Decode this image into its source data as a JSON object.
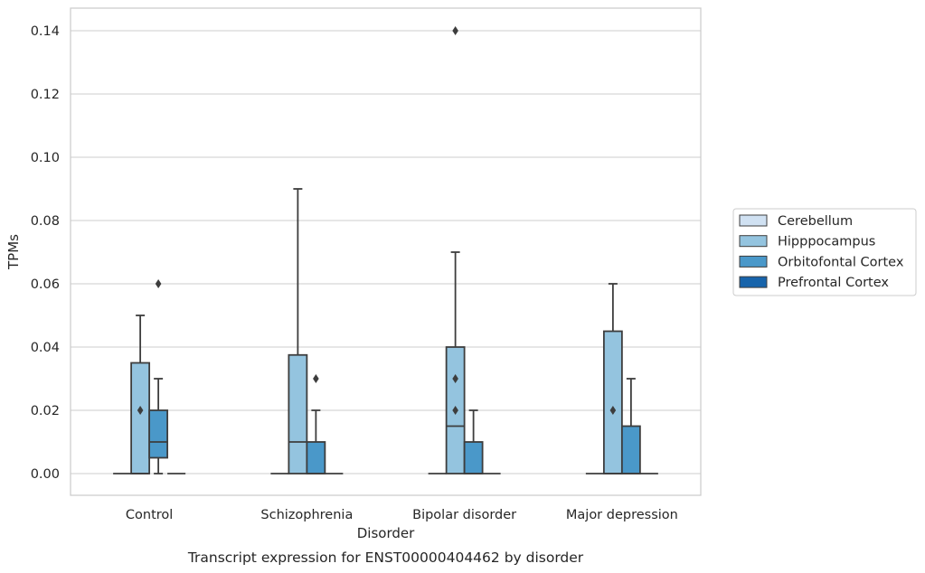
{
  "chart_data": {
    "type": "boxplot",
    "title": "",
    "xlabel": "Disorder",
    "ylabel": "TPMs",
    "caption": "Transcript expression for ENST00000404462 by disorder",
    "categories": [
      "Control",
      "Schizophrenia",
      "Bipolar disorder",
      "Major depression"
    ],
    "ylim": [
      -0.007,
      0.147
    ],
    "yticks": [
      0.0,
      0.02,
      0.04,
      0.06,
      0.08,
      0.1,
      0.12,
      0.14
    ],
    "ytick_labels": [
      "0.00",
      "0.02",
      "0.04",
      "0.06",
      "0.08",
      "0.10",
      "0.12",
      "0.14"
    ],
    "grid": true,
    "legend_position": "right",
    "series": [
      {
        "name": "Cerebellum",
        "color": "#d0e1f2",
        "boxes": [
          {
            "q1": 0,
            "median": 0,
            "q3": 0,
            "whisker_low": 0,
            "whisker_high": 0,
            "outliers": []
          },
          {
            "q1": 0,
            "median": 0,
            "q3": 0,
            "whisker_low": 0,
            "whisker_high": 0,
            "outliers": []
          },
          {
            "q1": 0,
            "median": 0,
            "q3": 0,
            "whisker_low": 0,
            "whisker_high": 0,
            "outliers": []
          },
          {
            "q1": 0,
            "median": 0,
            "q3": 0,
            "whisker_low": 0,
            "whisker_high": 0,
            "outliers": []
          }
        ]
      },
      {
        "name": "Hipppocampus",
        "color": "#94c4df",
        "boxes": [
          {
            "q1": 0,
            "median": 0,
            "q3": 0.035,
            "whisker_low": 0,
            "whisker_high": 0.05,
            "outliers": [
              0.02
            ]
          },
          {
            "q1": 0,
            "median": 0.01,
            "q3": 0.0375,
            "whisker_low": 0,
            "whisker_high": 0.09,
            "outliers": []
          },
          {
            "q1": 0,
            "median": 0.015,
            "q3": 0.04,
            "whisker_low": 0,
            "whisker_high": 0.07,
            "outliers": [
              0.02,
              0.03,
              0.14
            ]
          },
          {
            "q1": 0,
            "median": 0,
            "q3": 0.045,
            "whisker_low": 0,
            "whisker_high": 0.06,
            "outliers": [
              0.02
            ]
          }
        ]
      },
      {
        "name": "Orbitofontal Cortex",
        "color": "#4a98c9",
        "boxes": [
          {
            "q1": 0.005,
            "median": 0.01,
            "q3": 0.02,
            "whisker_low": 0,
            "whisker_high": 0.03,
            "outliers": [
              0.06
            ]
          },
          {
            "q1": 0,
            "median": 0,
            "q3": 0.01,
            "whisker_low": 0,
            "whisker_high": 0.02,
            "outliers": [
              0.03
            ]
          },
          {
            "q1": 0,
            "median": 0,
            "q3": 0.01,
            "whisker_low": 0,
            "whisker_high": 0.02,
            "outliers": []
          },
          {
            "q1": 0,
            "median": 0,
            "q3": 0.015,
            "whisker_low": 0,
            "whisker_high": 0.03,
            "outliers": []
          }
        ]
      },
      {
        "name": "Prefrontal Cortex",
        "color": "#1764ab",
        "boxes": [
          {
            "q1": 0,
            "median": 0,
            "q3": 0,
            "whisker_low": 0,
            "whisker_high": 0,
            "outliers": []
          },
          {
            "q1": 0,
            "median": 0,
            "q3": 0,
            "whisker_low": 0,
            "whisker_high": 0,
            "outliers": []
          },
          {
            "q1": 0,
            "median": 0,
            "q3": 0,
            "whisker_low": 0,
            "whisker_high": 0,
            "outliers": []
          },
          {
            "q1": 0,
            "median": 0,
            "q3": 0,
            "whisker_low": 0,
            "whisker_high": 0,
            "outliers": []
          }
        ]
      }
    ]
  }
}
